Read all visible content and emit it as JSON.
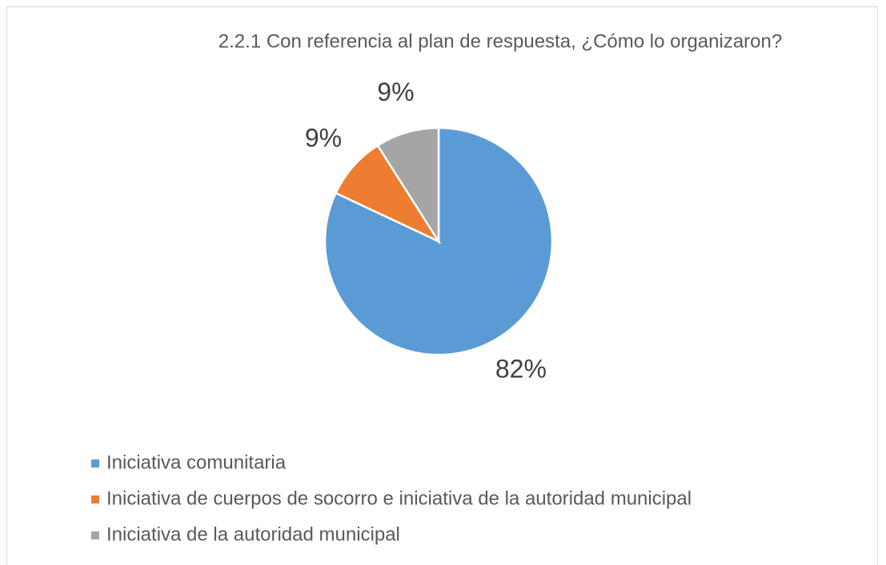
{
  "chart_data": {
    "type": "pie",
    "title": "2.2.1 Con referencia al plan de respuesta, ¿Cómo lo organizaron?",
    "categories": [
      "Iniciativa comunitaria",
      "Iniciativa de cuerpos de socorro e iniciativa de la autoridad municipal",
      "Iniciativa de la autoridad municipal"
    ],
    "values": [
      82,
      9,
      9
    ],
    "value_labels": [
      "82%",
      "9%",
      "9%"
    ],
    "colors": [
      "#5b9bd5",
      "#ed7d31",
      "#a5a5a5"
    ],
    "legend": "bottom"
  }
}
